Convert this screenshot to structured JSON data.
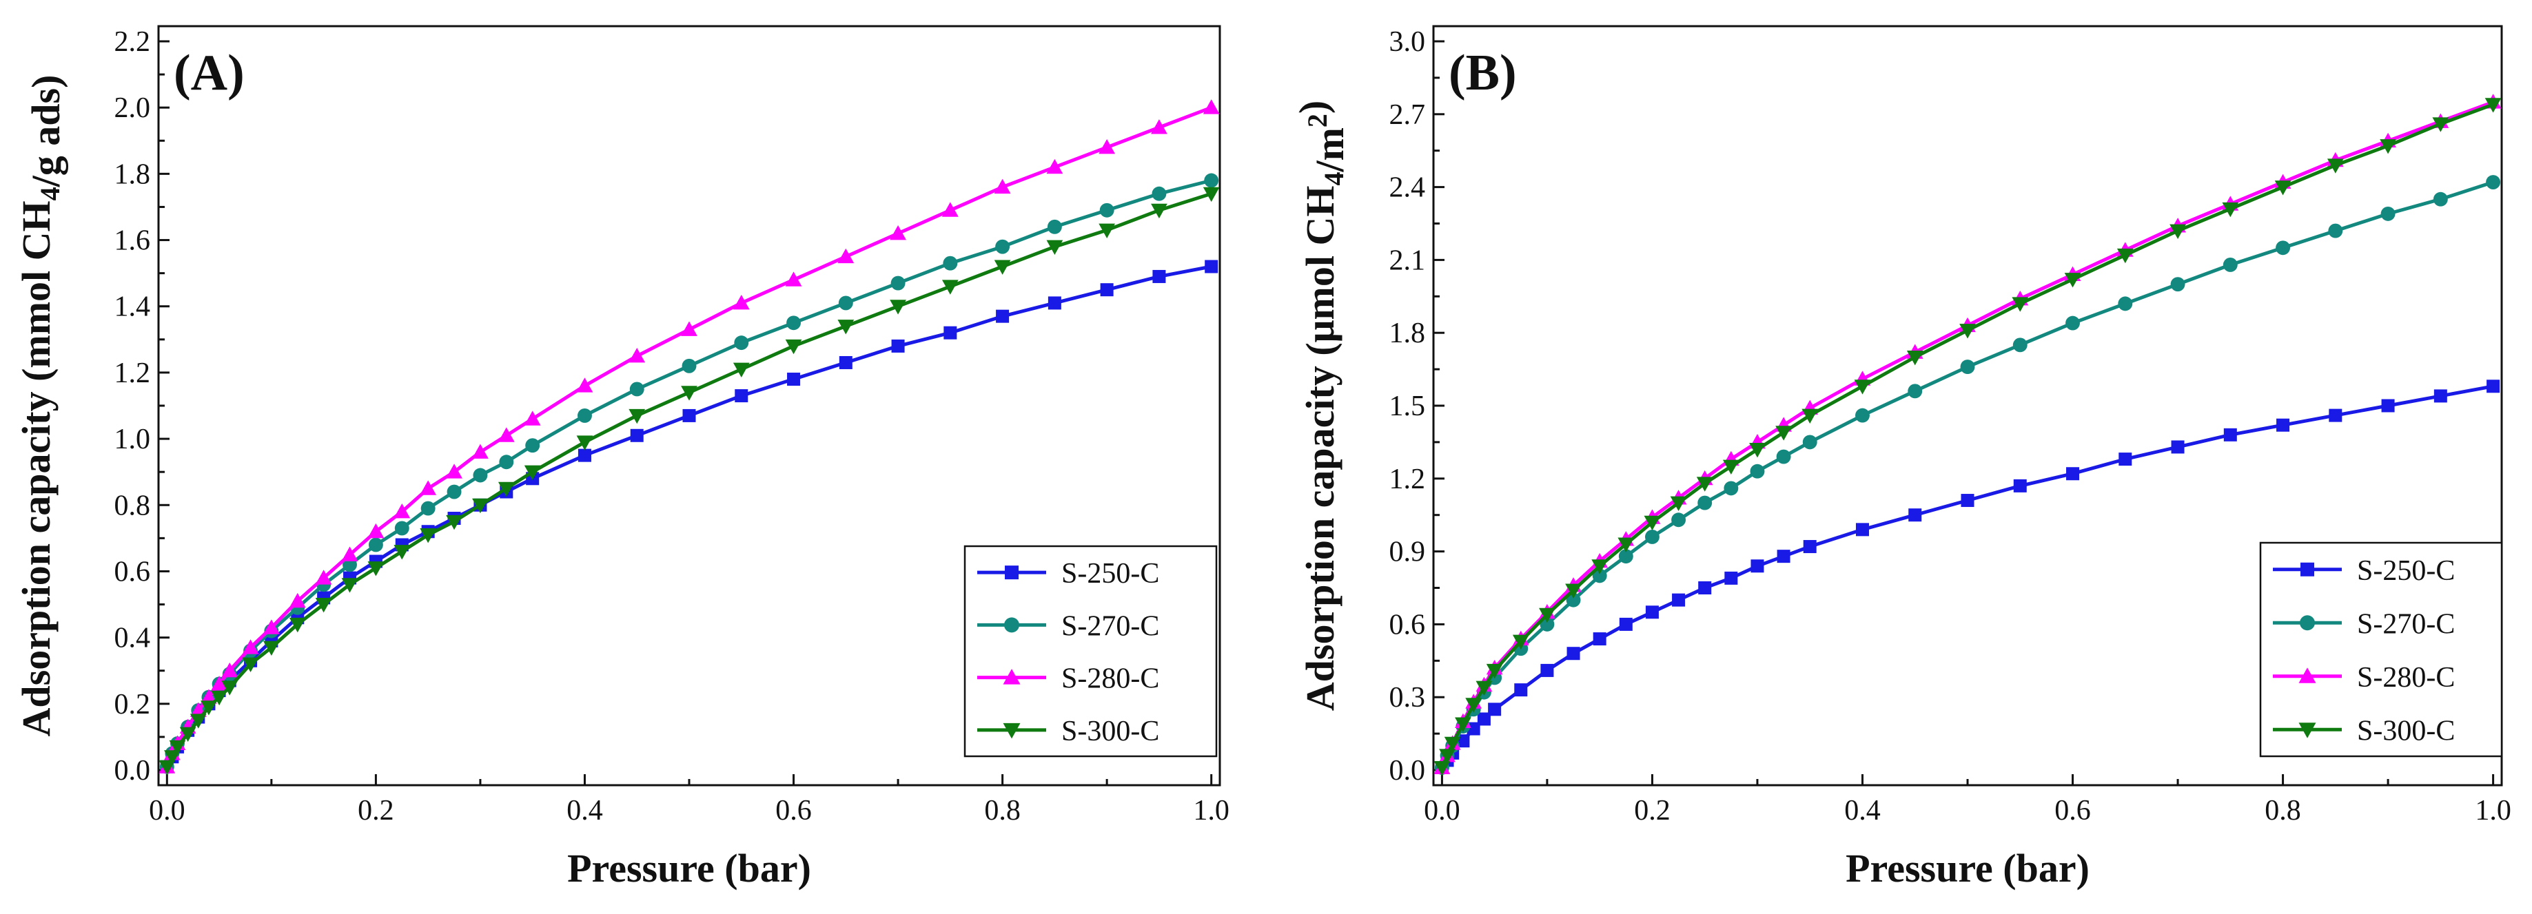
{
  "chart_data": [
    {
      "type": "line",
      "panel_label": "(A)",
      "xlabel": "Pressure (bar)",
      "ylabel": {
        "pre": "Adsorption capacity (mmol CH",
        "sub": "4",
        "post": "/g ads)"
      },
      "xlim": [
        0.0,
        1.0
      ],
      "ylim": [
        0.0,
        2.2
      ],
      "xticks": [
        0.0,
        0.2,
        0.4,
        0.6,
        0.8,
        1.0
      ],
      "xtick_labels": [
        "0.0",
        "0.2",
        "0.4",
        "0.6",
        "0.8",
        "1.0"
      ],
      "yticks": [
        0.0,
        0.2,
        0.4,
        0.6,
        0.8,
        1.0,
        1.2,
        1.4,
        1.6,
        1.8,
        2.0,
        2.2
      ],
      "ytick_labels": [
        "0.0",
        "0.2",
        "0.4",
        "0.6",
        "0.8",
        "1.0",
        "1.2",
        "1.4",
        "1.6",
        "1.8",
        "2.0",
        "2.2"
      ],
      "legend_position": "lower-right",
      "x": [
        0.0,
        0.005,
        0.01,
        0.02,
        0.03,
        0.04,
        0.05,
        0.06,
        0.08,
        0.1,
        0.125,
        0.15,
        0.175,
        0.2,
        0.225,
        0.25,
        0.275,
        0.3,
        0.325,
        0.35,
        0.4,
        0.45,
        0.5,
        0.55,
        0.6,
        0.65,
        0.7,
        0.75,
        0.8,
        0.85,
        0.9,
        0.95,
        1.0
      ],
      "series": [
        {
          "name": "S-250-C",
          "color": "#1a1ae6",
          "marker": "square",
          "values": [
            0.01,
            0.04,
            0.07,
            0.12,
            0.16,
            0.2,
            0.24,
            0.27,
            0.33,
            0.39,
            0.46,
            0.52,
            0.58,
            0.63,
            0.68,
            0.72,
            0.76,
            0.8,
            0.84,
            0.88,
            0.95,
            1.01,
            1.07,
            1.13,
            1.18,
            1.23,
            1.28,
            1.32,
            1.37,
            1.41,
            1.45,
            1.49,
            1.52
          ]
        },
        {
          "name": "S-270-C",
          "color": "#12887f",
          "marker": "circle",
          "values": [
            0.01,
            0.05,
            0.08,
            0.13,
            0.18,
            0.22,
            0.26,
            0.29,
            0.36,
            0.42,
            0.49,
            0.56,
            0.62,
            0.68,
            0.73,
            0.79,
            0.84,
            0.89,
            0.93,
            0.98,
            1.07,
            1.15,
            1.22,
            1.29,
            1.35,
            1.41,
            1.47,
            1.53,
            1.58,
            1.64,
            1.69,
            1.74,
            1.78
          ]
        },
        {
          "name": "S-280-C",
          "color": "#ff00ff",
          "marker": "triangle-up",
          "values": [
            0.01,
            0.05,
            0.08,
            0.13,
            0.18,
            0.22,
            0.26,
            0.3,
            0.37,
            0.43,
            0.51,
            0.58,
            0.65,
            0.72,
            0.78,
            0.85,
            0.9,
            0.96,
            1.01,
            1.06,
            1.16,
            1.25,
            1.33,
            1.41,
            1.48,
            1.55,
            1.62,
            1.69,
            1.76,
            1.82,
            1.88,
            1.94,
            2.0
          ]
        },
        {
          "name": "S-300-C",
          "color": "#0f7a0f",
          "marker": "triangle-down",
          "values": [
            0.01,
            0.04,
            0.07,
            0.11,
            0.15,
            0.19,
            0.22,
            0.25,
            0.32,
            0.37,
            0.44,
            0.5,
            0.56,
            0.61,
            0.66,
            0.71,
            0.75,
            0.8,
            0.85,
            0.9,
            0.99,
            1.07,
            1.14,
            1.21,
            1.28,
            1.34,
            1.4,
            1.46,
            1.52,
            1.58,
            1.63,
            1.69,
            1.74
          ]
        }
      ]
    },
    {
      "type": "line",
      "panel_label": "(B)",
      "xlabel": "Pressure (bar)",
      "ylabel": {
        "pre": "Adsorption capacity (μmol CH",
        "sub": "4",
        "post": "/m",
        "sup": "2",
        "end": ")"
      },
      "xlim": [
        0.0,
        1.0
      ],
      "ylim": [
        0.0,
        3.0
      ],
      "xticks": [
        0.0,
        0.2,
        0.4,
        0.6,
        0.8,
        1.0
      ],
      "xtick_labels": [
        "0.0",
        "0.2",
        "0.4",
        "0.6",
        "0.8",
        "1.0"
      ],
      "yticks": [
        0.0,
        0.3,
        0.6,
        0.9,
        1.2,
        1.5,
        1.8,
        2.1,
        2.4,
        2.7,
        3.0
      ],
      "ytick_labels": [
        "0.0",
        "0.3",
        "0.6",
        "0.9",
        "1.2",
        "1.5",
        "1.8",
        "2.1",
        "2.4",
        "2.7",
        "3.0"
      ],
      "legend_position": "lower-right",
      "x": [
        0.0,
        0.005,
        0.01,
        0.02,
        0.03,
        0.04,
        0.05,
        0.075,
        0.1,
        0.125,
        0.15,
        0.175,
        0.2,
        0.225,
        0.25,
        0.275,
        0.3,
        0.325,
        0.35,
        0.4,
        0.45,
        0.5,
        0.55,
        0.6,
        0.65,
        0.7,
        0.75,
        0.8,
        0.85,
        0.9,
        0.95,
        1.0
      ],
      "series": [
        {
          "name": "S-250-C",
          "color": "#1a1ae6",
          "marker": "square",
          "values": [
            0.01,
            0.04,
            0.07,
            0.12,
            0.17,
            0.21,
            0.25,
            0.33,
            0.41,
            0.48,
            0.54,
            0.6,
            0.65,
            0.7,
            0.75,
            0.79,
            0.84,
            0.88,
            0.92,
            0.99,
            1.05,
            1.11,
            1.17,
            1.22,
            1.28,
            1.33,
            1.38,
            1.42,
            1.46,
            1.5,
            1.54,
            1.58
          ]
        },
        {
          "name": "S-270-C",
          "color": "#12887f",
          "marker": "circle",
          "values": [
            0.01,
            0.06,
            0.1,
            0.18,
            0.25,
            0.32,
            0.38,
            0.5,
            0.6,
            0.7,
            0.8,
            0.88,
            0.96,
            1.03,
            1.1,
            1.16,
            1.23,
            1.29,
            1.35,
            1.46,
            1.56,
            1.66,
            1.75,
            1.84,
            1.92,
            2.0,
            2.08,
            2.15,
            2.22,
            2.29,
            2.35,
            2.42
          ]
        },
        {
          "name": "S-280-C",
          "color": "#ff00ff",
          "marker": "triangle-up",
          "values": [
            0.01,
            0.06,
            0.11,
            0.2,
            0.28,
            0.35,
            0.42,
            0.54,
            0.65,
            0.76,
            0.86,
            0.95,
            1.04,
            1.12,
            1.2,
            1.28,
            1.35,
            1.42,
            1.49,
            1.61,
            1.72,
            1.83,
            1.94,
            2.04,
            2.14,
            2.24,
            2.33,
            2.42,
            2.51,
            2.59,
            2.67,
            2.75
          ]
        },
        {
          "name": "S-300-C",
          "color": "#0f7a0f",
          "marker": "triangle-down",
          "values": [
            0.01,
            0.06,
            0.11,
            0.19,
            0.27,
            0.34,
            0.41,
            0.53,
            0.64,
            0.74,
            0.84,
            0.93,
            1.02,
            1.1,
            1.18,
            1.25,
            1.32,
            1.39,
            1.46,
            1.58,
            1.7,
            1.81,
            1.92,
            2.02,
            2.12,
            2.22,
            2.31,
            2.4,
            2.49,
            2.57,
            2.66,
            2.74
          ]
        }
      ]
    }
  ]
}
